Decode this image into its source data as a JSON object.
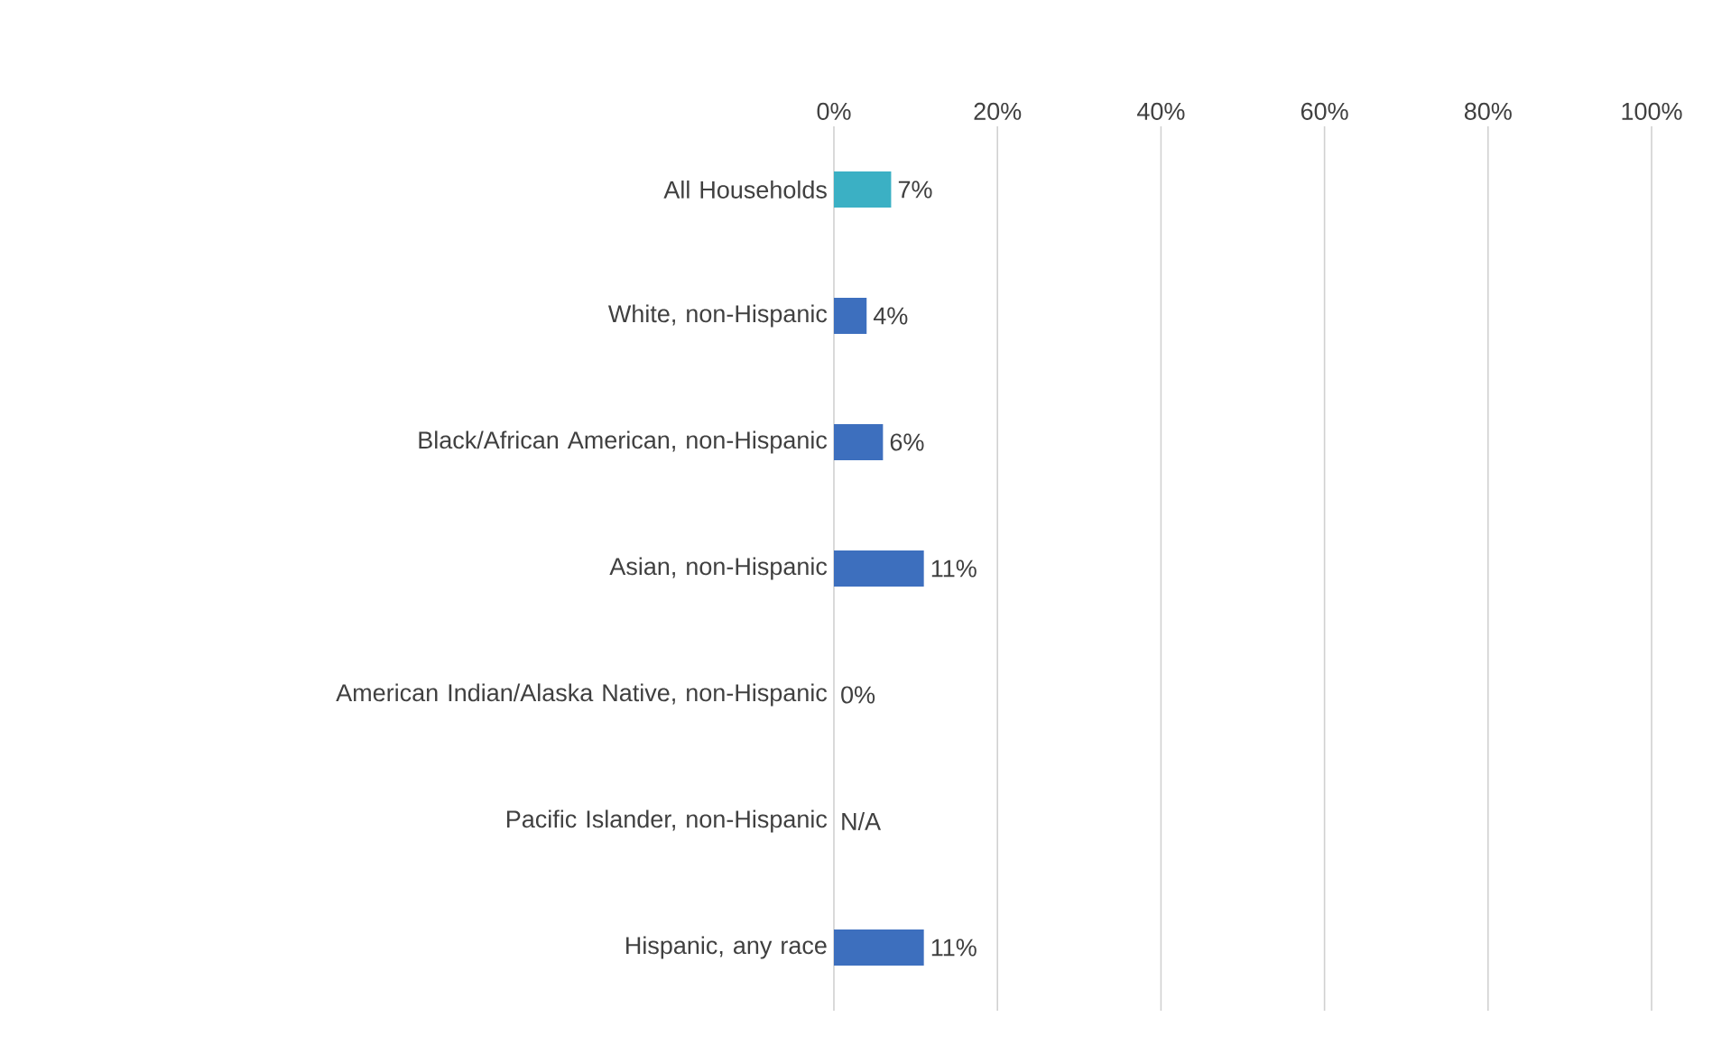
{
  "chart_data": {
    "type": "bar",
    "orientation": "horizontal",
    "categories": [
      "All Households",
      "White, non-Hispanic",
      "Black/African American, non-Hispanic",
      "Asian, non-Hispanic",
      "American Indian/Alaska Native, non-Hispanic",
      "Pacific Islander, non-Hispanic",
      "Hispanic, any race"
    ],
    "values": [
      7,
      4,
      6,
      11,
      0,
      null,
      11
    ],
    "colors": [
      "#3bb0c4",
      "#3d6fbe",
      "#3d6fbe",
      "#3d6fbe",
      "#3d6fbe",
      "#3d6fbe",
      "#3d6fbe"
    ],
    "value_labels": [
      "7%",
      "4%",
      "6%",
      "11%",
      "0%",
      "N/A",
      "11%"
    ],
    "xlim": [
      0,
      100
    ],
    "xticks": [
      {
        "value": 0,
        "label": "0%"
      },
      {
        "value": 20,
        "label": "20%"
      },
      {
        "value": 40,
        "label": "40%"
      },
      {
        "value": 60,
        "label": "60%"
      },
      {
        "value": 80,
        "label": "80%"
      },
      {
        "value": 100,
        "label": "100%"
      }
    ],
    "grid": "x"
  }
}
